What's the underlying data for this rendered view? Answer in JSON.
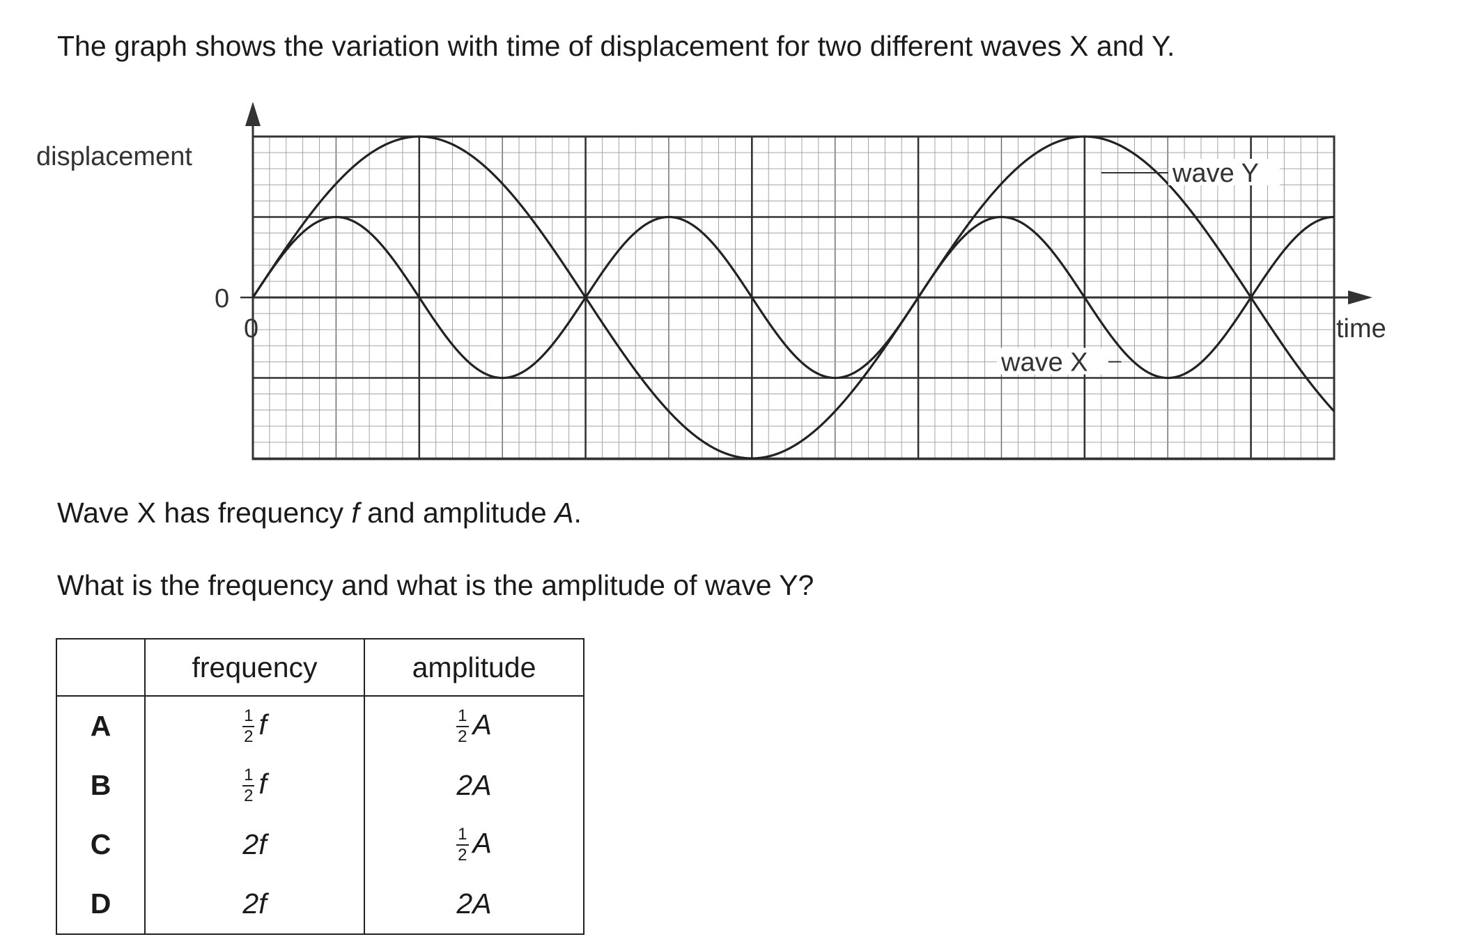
{
  "question": {
    "statement": "The graph shows the variation with time of displacement for two different waves X and Y.",
    "given_a": "Wave X has frequency ",
    "given_f": "f",
    "given_b": " and amplitude ",
    "given_A": "A",
    "given_c": ".",
    "ask": "What is the frequency and what is the amplitude of wave Y?"
  },
  "chart_data": {
    "type": "line",
    "ylabel": "displacement",
    "xlabel": "time",
    "y_origin_label": "0",
    "x_origin_label": "0",
    "x_units": "large grid squares",
    "xlim": [
      0,
      6.5
    ],
    "ylim": [
      -2,
      2
    ],
    "grid": true,
    "series": [
      {
        "name": "wave X",
        "amplitude": 1,
        "period": 2,
        "x": [
          0,
          0.5,
          1,
          1.5,
          2,
          2.5,
          3,
          3.5,
          4,
          4.5,
          5,
          5.5,
          6,
          6.5
        ],
        "y": [
          0,
          1,
          0,
          -1,
          0,
          1,
          0,
          -1,
          0,
          1,
          0,
          -1,
          0,
          1
        ]
      },
      {
        "name": "wave Y",
        "amplitude": 2,
        "period": 4,
        "x": [
          0,
          1,
          2,
          3,
          4,
          5,
          6,
          6.5
        ],
        "y": [
          0,
          2,
          0,
          -2,
          0,
          2,
          0,
          -1.41
        ]
      }
    ]
  },
  "options_table": {
    "headers": [
      "",
      "frequency",
      "amplitude"
    ],
    "rows": [
      {
        "letter": "A",
        "freq_frac": true,
        "freq_num": "1",
        "freq_den": "2",
        "freq_sym": "f",
        "freq_text": "",
        "amp_frac": true,
        "amp_num": "1",
        "amp_den": "2",
        "amp_sym": "A",
        "amp_text": ""
      },
      {
        "letter": "B",
        "freq_frac": true,
        "freq_num": "1",
        "freq_den": "2",
        "freq_sym": "f",
        "freq_text": "",
        "amp_frac": false,
        "amp_num": "",
        "amp_den": "",
        "amp_sym": "",
        "amp_text": "2A"
      },
      {
        "letter": "C",
        "freq_frac": false,
        "freq_num": "",
        "freq_den": "",
        "freq_sym": "",
        "freq_text": "2f",
        "amp_frac": true,
        "amp_num": "1",
        "amp_den": "2",
        "amp_sym": "A",
        "amp_text": ""
      },
      {
        "letter": "D",
        "freq_frac": false,
        "freq_num": "",
        "freq_den": "",
        "freq_sym": "",
        "freq_text": "2f",
        "amp_frac": false,
        "amp_num": "",
        "amp_den": "",
        "amp_sym": "",
        "amp_text": "2A"
      }
    ]
  }
}
